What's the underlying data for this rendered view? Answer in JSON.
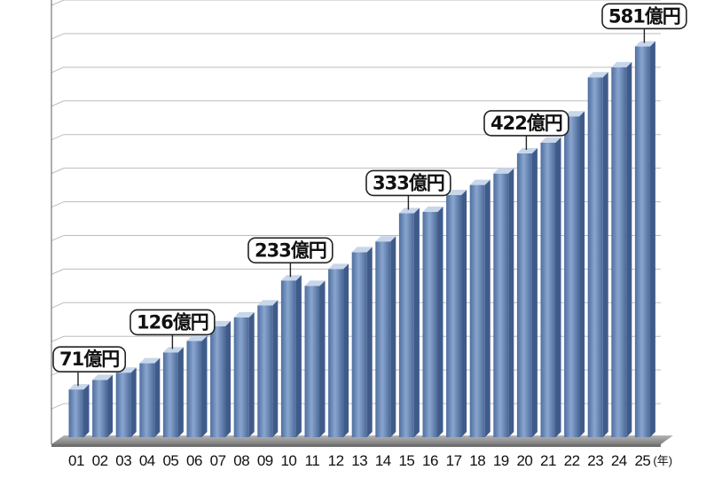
{
  "chart_data": {
    "type": "bar",
    "categories": [
      "01",
      "02",
      "03",
      "04",
      "05",
      "06",
      "07",
      "08",
      "09",
      "10",
      "11",
      "12",
      "13",
      "14",
      "15",
      "16",
      "17",
      "18",
      "19",
      "20",
      "21",
      "22",
      "23",
      "24",
      "25"
    ],
    "values": [
      71,
      85,
      96,
      110,
      126,
      143,
      165,
      178,
      196,
      233,
      225,
      250,
      275,
      291,
      333,
      335,
      360,
      375,
      392,
      422,
      438,
      477,
      535,
      550,
      581
    ],
    "x_unit": "(年)",
    "ylim": [
      0,
      650
    ],
    "grid": true,
    "colors": {
      "bar_front": "#6d8dbd",
      "bar_top": "#c7d6ea",
      "bar_side": "#3f5b8a",
      "floor": "#9b9b9b",
      "grid": "#bdbdbd"
    },
    "annotations": [
      {
        "index": 0,
        "label": "71億円"
      },
      {
        "index": 4,
        "label": "126億円"
      },
      {
        "index": 9,
        "label": "233億円"
      },
      {
        "index": 14,
        "label": "333億円"
      },
      {
        "index": 19,
        "label": "422億円"
      },
      {
        "index": 24,
        "label": "581億円"
      }
    ]
  }
}
